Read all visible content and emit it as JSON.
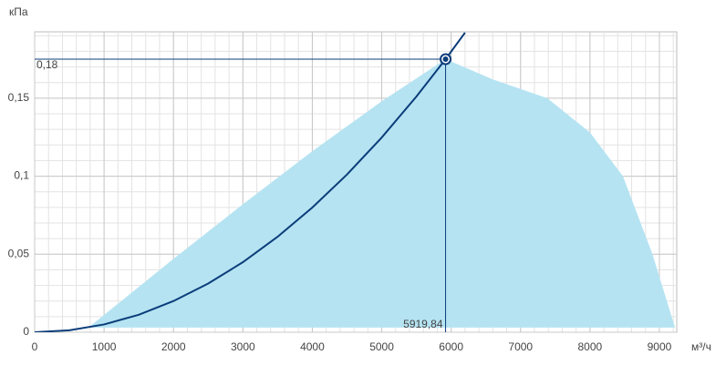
{
  "chart_data": {
    "type": "line",
    "y_label": "кПа",
    "x_label": "м³/ч",
    "xlim": [
      0,
      9250
    ],
    "ylim": [
      0,
      0.1925
    ],
    "xticks": [
      0,
      1000,
      2000,
      3000,
      4000,
      5000,
      6000,
      7000,
      8000,
      9000
    ],
    "yticks": [
      0,
      {
        "value": 0.05,
        "label": "0,05"
      },
      {
        "value": 0.1,
        "label": "0,1"
      },
      {
        "value": 0.15,
        "label": "0,15"
      }
    ],
    "grid": true,
    "area": {
      "color": "#b5e3f2",
      "x": [
        775,
        2000,
        3000,
        4000,
        5000,
        5919.84,
        6600,
        7385,
        8000,
        8475,
        8900,
        9225,
        9225
      ],
      "values": [
        0.003,
        0.047,
        0.082,
        0.116,
        0.148,
        0.175,
        0.162,
        0.15,
        0.128,
        0.1,
        0.05,
        0.003,
        0.003
      ]
    },
    "curve": {
      "color": "#0b3d7a",
      "x": [
        0,
        500,
        1000,
        1500,
        2000,
        2500,
        3000,
        3500,
        4000,
        4500,
        5000,
        5500,
        5919.84,
        6200
      ],
      "values": [
        0,
        0.00125,
        0.005,
        0.0112,
        0.02,
        0.0312,
        0.0449,
        0.0612,
        0.0799,
        0.1011,
        0.1248,
        0.1511,
        0.175,
        0.192
      ]
    },
    "point": {
      "x": 5919.84,
      "y": 0.175,
      "x_label": "5919,84",
      "y_label": "0,18",
      "color": "#0b3d7a"
    }
  }
}
